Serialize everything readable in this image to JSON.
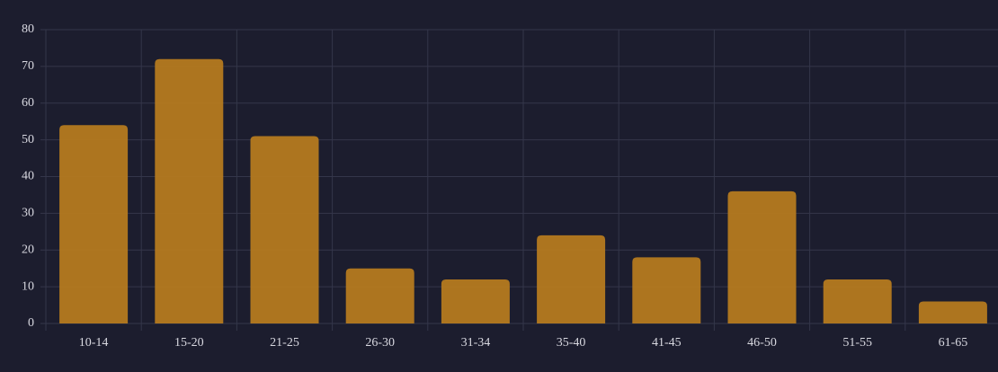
{
  "chart_data": {
    "type": "bar",
    "categories": [
      "10-14",
      "15-20",
      "21-25",
      "26-30",
      "31-34",
      "35-40",
      "41-45",
      "46-50",
      "51-55",
      "61-65"
    ],
    "values": [
      54,
      72,
      51,
      15,
      12,
      24,
      18,
      36,
      12,
      6
    ],
    "color": "#b57a1f",
    "ylim": [
      0,
      80
    ],
    "yticks": [
      0,
      10,
      20,
      30,
      40,
      50,
      60,
      70,
      80
    ],
    "grid": true
  }
}
